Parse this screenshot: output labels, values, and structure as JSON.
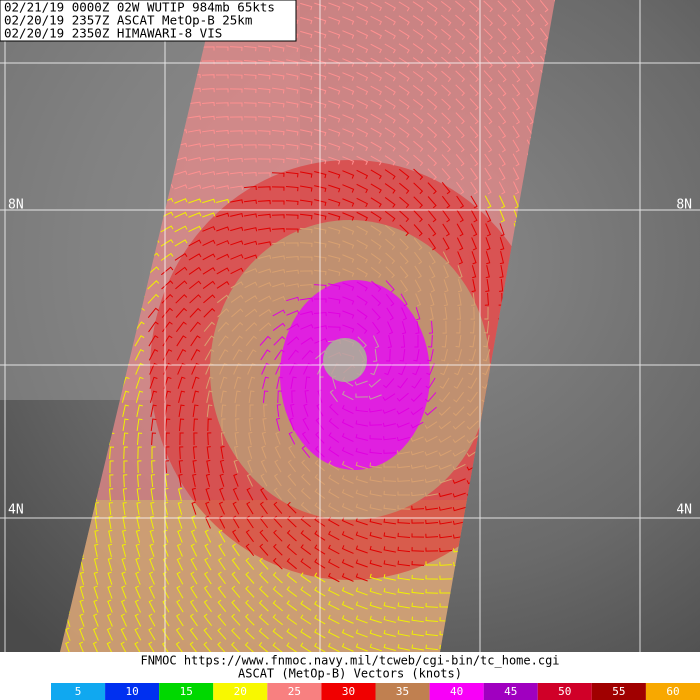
{
  "header": {
    "lines": [
      "02/21/19 0000Z  02W WUTIP 984mb 65kts",
      "02/20/19 2357Z  ASCAT MetOp-B 25km",
      "02/20/19 2350Z  HIMAWARI-8 VIS"
    ]
  },
  "map": {
    "lat_labels_left": [
      "8N",
      "4N"
    ],
    "lat_labels_right": [
      "8N",
      "4N"
    ]
  },
  "footer": {
    "source": "FNMOC https://www.fnmoc.navy.mil/tcweb/cgi-bin/tc_home.cgi",
    "legend_title": "ASCAT (MetOp-B) Vectors (knots)"
  },
  "colorbar": {
    "values": [
      5,
      10,
      15,
      20,
      25,
      30,
      35,
      40,
      45,
      50,
      55,
      60
    ],
    "colors": [
      "#10a8f0",
      "#0030f0",
      "#00d800",
      "#f8f800",
      "#f88080",
      "#f00000",
      "#c08050",
      "#f800f8",
      "#a000c0",
      "#d00028",
      "#a00000",
      "#f8a800"
    ]
  }
}
